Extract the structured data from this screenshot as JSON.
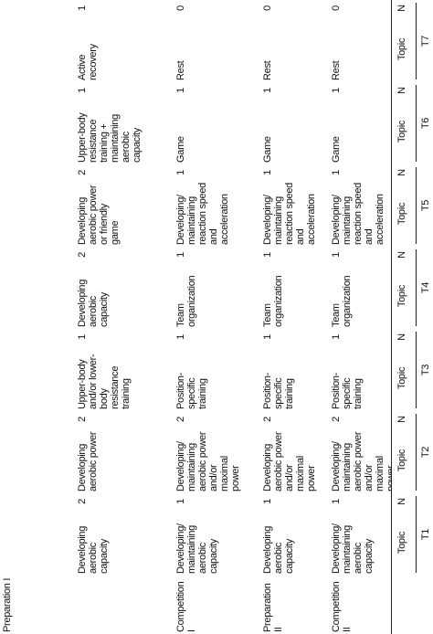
{
  "header": {
    "periods": [
      "T1",
      "T2",
      "T3",
      "T4",
      "T5",
      "T6",
      "T7"
    ],
    "columns": [
      "Topic",
      "N",
      "Topic",
      "N",
      "Topic",
      "N",
      "Topic",
      "N",
      "Topic",
      "N",
      "Topic",
      "N",
      "Topic",
      "N"
    ]
  },
  "rows": [
    {
      "label": "Preparation I",
      "cells": [
        "Developing aerobic capacity",
        2,
        "Developing aerobic power",
        2,
        "Upper-body and/or lower-body resistance training",
        1,
        "Developing aerobic capacity",
        2,
        "Developing aerobic power or friendly game",
        2,
        "Upper-body resistance training + maintaining aerobic capacity",
        1,
        "Active recovery",
        1
      ]
    },
    {
      "label": "Competition I",
      "cells": [
        "Developing/ maintaining aerobic capacity",
        1,
        "Developing/ maintaining aerobic power and/or maximal power",
        2,
        "Position-specific training",
        1,
        "Team organization",
        1,
        "Developing/ maintaining reaction speed and acceleration",
        1,
        "Game",
        1,
        "Rest",
        0
      ]
    },
    {
      "label": "Preparation II",
      "cells": [
        "Developing aerobic capacity",
        1,
        "Developing aerobic power and/or maximal power",
        2,
        "Position-specific training",
        1,
        "Team organization",
        1,
        "Developing/ maintaining reaction speed and acceleration",
        1,
        "Game",
        1,
        "Rest",
        0
      ]
    },
    {
      "label": "Competition II",
      "cells": [
        "Developing/ maintaining aerobic capacity",
        1,
        "Developing/ maintaining aerobic power and/or maximal power",
        2,
        "Position-specific training",
        1,
        "Team organization",
        1,
        "Developing/ maintaining reaction speed and acceleration",
        1,
        "Game",
        1,
        "Rest",
        0
      ]
    }
  ]
}
